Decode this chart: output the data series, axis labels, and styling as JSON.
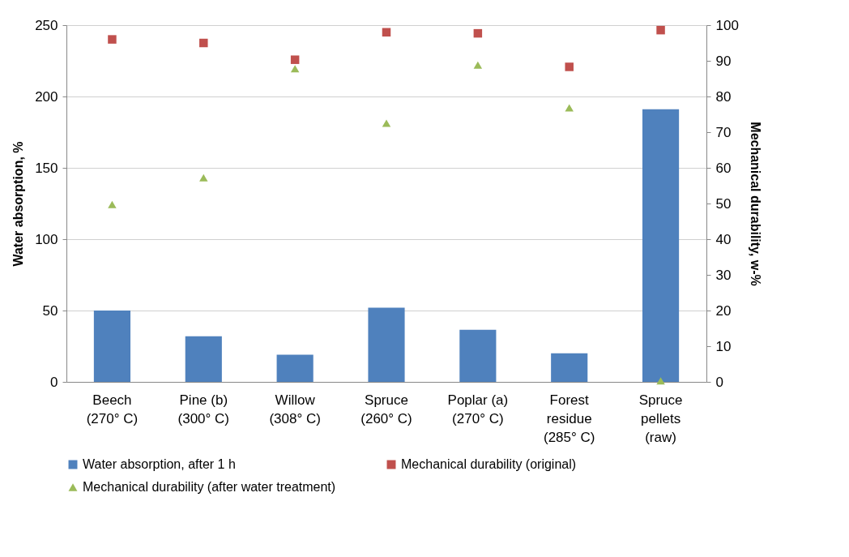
{
  "chart_data": {
    "type": "bar",
    "ylabel": "Water absorption, %",
    "y2label": "Mechanical durability, w-%",
    "categories": [
      "Beech\n(270° C)",
      "Pine (b)\n(300° C)",
      "Willow\n(308° C)",
      "Spruce\n(260° C)",
      "Poplar (a)\n(270° C)",
      "Forest\nresidue\n(285° C)",
      "Spruce\npellets\n(raw)"
    ],
    "series": [
      {
        "name": "Water absorption, after 1 h",
        "color": "#4f81bd",
        "values": [
          50,
          32,
          19,
          52,
          36.5,
          20,
          191
        ]
      },
      {
        "name": "Mechanical durability (original)",
        "type": "scatter",
        "marker": "square",
        "axis": "y2",
        "color": "#c0504d",
        "values": [
          96,
          95,
          90.3,
          98,
          97.7,
          88.3,
          98.6
        ]
      },
      {
        "name": "Mechanical durability (after water treatment)",
        "type": "scatter",
        "marker": "triangle",
        "axis": "y2",
        "color": "#9bbb59",
        "values": [
          49.7,
          57.2,
          87.8,
          72.5,
          88.8,
          76.8,
          0.3
        ]
      }
    ],
    "ylim": [
      0,
      250
    ],
    "yticks": [
      0,
      50,
      100,
      150,
      200,
      250
    ],
    "y2lim": [
      0,
      100
    ],
    "y2ticks": [
      0,
      10,
      20,
      30,
      40,
      50,
      60,
      70,
      80,
      90,
      100
    ],
    "grid": "y",
    "legend": "bottom"
  }
}
